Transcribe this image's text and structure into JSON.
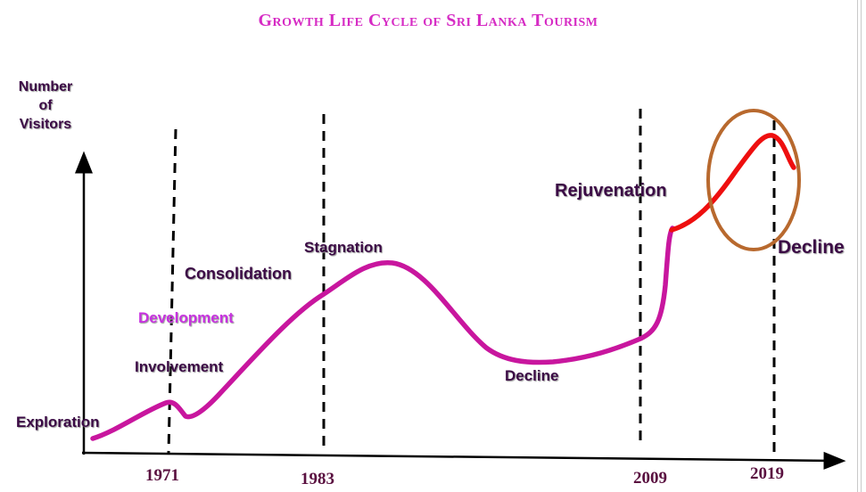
{
  "title": "Growth Life Cycle of Sri Lanka Tourism",
  "y_axis_label": [
    "Number",
    "of",
    "Visitors"
  ],
  "stages": {
    "exploration": "Exploration",
    "involvement": "Involvement",
    "development": "Development",
    "consolidation": "Consolidation",
    "stagnation": "Stagnation",
    "decline_1": "Decline",
    "rejuvenation": "Rejuvenation",
    "decline_2": "Decline"
  },
  "years": [
    "1971",
    "1983",
    "2009",
    "2019"
  ],
  "colors": {
    "title": "#d62bc4",
    "main_curve": "#c8169e",
    "recent_curve": "#ee0f0f",
    "highlight_circle": "#b8692e",
    "label_dark": "#3b0a45",
    "label_pink": "#c832e0",
    "year_text": "#5a1040"
  }
}
